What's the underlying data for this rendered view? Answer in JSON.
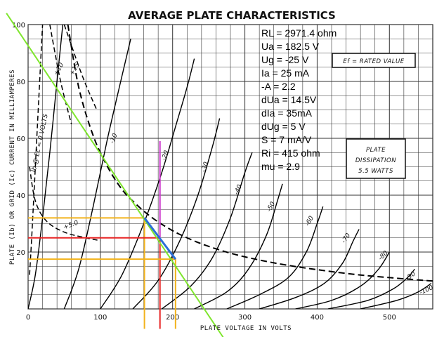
{
  "chart_data": {
    "type": "line",
    "title": "AVERAGE PLATE CHARACTERISTICS",
    "xlabel": "PLATE VOLTAGE IN VOLTS",
    "ylabel": "PLATE (Ib) OR GRID (Ic) CURRENT IN MILLIAMPERES",
    "xlim": [
      0,
      560
    ],
    "ylim": [
      0,
      100
    ],
    "x_ticks": [
      0,
      100,
      200,
      300,
      400,
      500
    ],
    "y_ticks": [
      20,
      40,
      60,
      80,
      100
    ],
    "grid": true,
    "series": [
      {
        "name": "0",
        "points": [
          [
            0,
            0
          ],
          [
            10,
            12
          ],
          [
            20,
            32
          ],
          [
            30,
            55
          ],
          [
            40,
            80
          ],
          [
            48,
            100
          ]
        ]
      },
      {
        "name": "-10",
        "points": [
          [
            50,
            0
          ],
          [
            70,
            14
          ],
          [
            90,
            36
          ],
          [
            110,
            60
          ],
          [
            130,
            82
          ],
          [
            142,
            95
          ]
        ]
      },
      {
        "name": "-20",
        "points": [
          [
            100,
            0
          ],
          [
            130,
            12
          ],
          [
            160,
            30
          ],
          [
            185,
            48
          ],
          [
            205,
            65
          ],
          [
            220,
            78
          ],
          [
            230,
            88
          ]
        ]
      },
      {
        "name": "-30",
        "points": [
          [
            145,
            0
          ],
          [
            180,
            10
          ],
          [
            210,
            24
          ],
          [
            235,
            40
          ],
          [
            255,
            57
          ],
          [
            265,
            67
          ]
        ]
      },
      {
        "name": "-40",
        "points": [
          [
            185,
            0
          ],
          [
            225,
            8
          ],
          [
            255,
            18
          ],
          [
            280,
            32
          ],
          [
            300,
            48
          ],
          [
            310,
            55
          ]
        ]
      },
      {
        "name": "-50",
        "points": [
          [
            230,
            0
          ],
          [
            275,
            6
          ],
          [
            305,
            14
          ],
          [
            330,
            26
          ],
          [
            345,
            38
          ],
          [
            352,
            44
          ]
        ]
      },
      {
        "name": "-60",
        "points": [
          [
            275,
            0
          ],
          [
            320,
            5
          ],
          [
            360,
            11
          ],
          [
            385,
            20
          ],
          [
            400,
            30
          ],
          [
            408,
            36
          ]
        ]
      },
      {
        "name": "-70",
        "points": [
          [
            320,
            0
          ],
          [
            370,
            4
          ],
          [
            410,
            9
          ],
          [
            435,
            16
          ],
          [
            450,
            24
          ],
          [
            458,
            28
          ]
        ]
      },
      {
        "name": "-80",
        "points": [
          [
            370,
            0
          ],
          [
            420,
            3
          ],
          [
            460,
            8
          ],
          [
            485,
            14
          ],
          [
            500,
            20
          ]
        ]
      },
      {
        "name": "-90",
        "points": [
          [
            415,
            0
          ],
          [
            470,
            3
          ],
          [
            505,
            7
          ],
          [
            525,
            11
          ],
          [
            535,
            14
          ]
        ]
      },
      {
        "name": "-100",
        "points": [
          [
            460,
            0
          ],
          [
            510,
            3
          ],
          [
            540,
            6
          ],
          [
            558,
            9
          ]
        ]
      }
    ],
    "dissipation_curve": {
      "name": "PLATE DISSIPATION 5.5 WATTS",
      "points": [
        [
          55,
          100
        ],
        [
          70,
          78
        ],
        [
          90,
          61
        ],
        [
          110,
          50
        ],
        [
          130,
          42
        ],
        [
          150,
          36.7
        ],
        [
          170,
          32.4
        ],
        [
          190,
          29
        ],
        [
          210,
          26.2
        ],
        [
          240,
          22.9
        ],
        [
          280,
          19.6
        ],
        [
          320,
          17.2
        ],
        [
          360,
          15.3
        ],
        [
          400,
          13.8
        ],
        [
          450,
          12.2
        ],
        [
          500,
          11
        ],
        [
          560,
          9.8
        ]
      ]
    },
    "grid_current_curves": [
      {
        "label": "Ib @ Ec = 0 VOLTS",
        "points": [
          [
            2,
            12
          ],
          [
            5,
            25
          ],
          [
            9,
            45
          ],
          [
            14,
            70
          ],
          [
            20,
            100
          ]
        ]
      },
      {
        "label": "+5.0",
        "points": [
          [
            2,
            50
          ],
          [
            10,
            38
          ],
          [
            25,
            31
          ],
          [
            50,
            27
          ],
          [
            80,
            25
          ],
          [
            100,
            24
          ]
        ]
      },
      {
        "label": "+10",
        "points": [
          [
            30,
            100
          ],
          [
            45,
            80
          ],
          [
            60,
            65
          ]
        ]
      },
      {
        "label": "+15",
        "points": [
          [
            50,
            100
          ],
          [
            75,
            82
          ],
          [
            95,
            70
          ]
        ]
      }
    ],
    "load_line": {
      "color": "#7fe62e",
      "points": [
        [
          -30,
          104
        ],
        [
          270,
          -10
        ]
      ],
      "rl_ohm": 2971.4
    },
    "operating_point": {
      "ua": 182.5,
      "ia": 25,
      "ug": -25
    },
    "construction_lines": [
      {
        "color": "#f2b21c",
        "x": 161,
        "y": 32,
        "x2": 161,
        "y2": -7
      },
      {
        "color": "#f2b21c",
        "x": 204,
        "y": 17.5,
        "x2": 204,
        "y2": -7
      },
      {
        "color": "#e82525",
        "x": 182.5,
        "y": 25,
        "x2": 182.5,
        "y2": -7
      },
      {
        "color": "#e82525",
        "x": 0,
        "y": 25,
        "x2": 182.5,
        "y2": 25
      },
      {
        "color": "#f2b21c",
        "x": 0,
        "y": 32,
        "x2": 161,
        "y2": 32
      },
      {
        "color": "#f2b21c",
        "x": 0,
        "y": 17.5,
        "x2": 204,
        "y2": 17.5
      },
      {
        "color": "#cc33cc",
        "x": 182.5,
        "y": 25,
        "x2": 182.5,
        "y2": 59
      },
      {
        "color": "#2b6fd6",
        "x": 161,
        "y": 32,
        "x2": 204,
        "y2": 17.5
      }
    ],
    "annotations": {
      "rated_value": "Ef = RATED VALUE",
      "plate_dissipation": [
        "PLATE",
        "DISSIPATION",
        "5.5 WATTS"
      ]
    },
    "info": [
      "RL = 2971.4 ohm",
      "Ua = 182.5 V",
      "Ug = -25 V",
      "Ia = 25 mA",
      "-A = 2.2",
      "dUa = 14.5V",
      "dIa = 35mA",
      "dUg = 5 V",
      "S = 7 mA/V",
      "Ri = 415 ohm",
      "mu = 2.9"
    ]
  }
}
